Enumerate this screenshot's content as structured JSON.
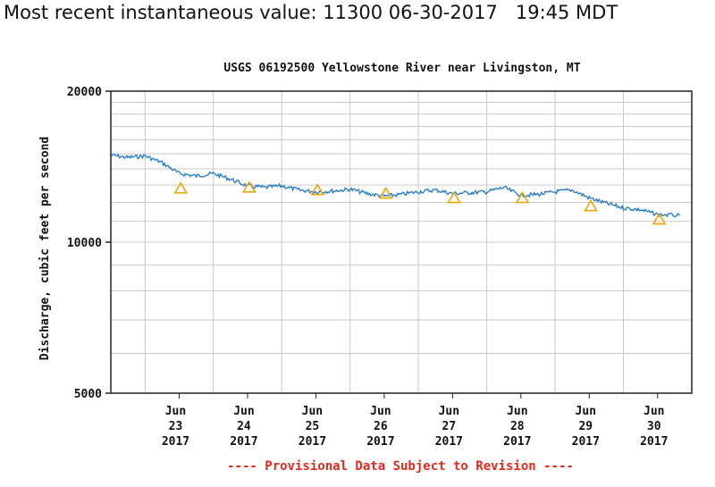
{
  "header": {
    "latest_value_text": "Most recent instantaneous value: 11300 06-30-2017   19:45 MDT"
  },
  "colors": {
    "series": "#1f77d0",
    "median_marker": "#f0a500",
    "footnote": "#e8281e",
    "grid": "#c8c8c8"
  },
  "chart_data": {
    "type": "line",
    "title": "USGS 06192500 Yellowstone River near Livingston, MT",
    "ylabel": "Discharge, cubic feet per second",
    "xlabel": "",
    "y_scale": "log",
    "ylim": [
      5000,
      20000
    ],
    "y_ticks": [
      5000,
      10000,
      20000
    ],
    "y_tick_labels": [
      "5000",
      "10000",
      "20000"
    ],
    "xlim": [
      "2017-06-22T12:00",
      "2017-07-01T00:00"
    ],
    "x_tick_labels": [
      {
        "month": "Jun",
        "day": "23",
        "year": "2017"
      },
      {
        "month": "Jun",
        "day": "24",
        "year": "2017"
      },
      {
        "month": "Jun",
        "day": "25",
        "year": "2017"
      },
      {
        "month": "Jun",
        "day": "26",
        "year": "2017"
      },
      {
        "month": "Jun",
        "day": "27",
        "year": "2017"
      },
      {
        "month": "Jun",
        "day": "28",
        "year": "2017"
      },
      {
        "month": "Jun",
        "day": "29",
        "year": "2017"
      },
      {
        "month": "Jun",
        "day": "30",
        "year": "2017"
      }
    ],
    "grid": true,
    "series": [
      {
        "values_x": [
          "2017-06-22T12:00",
          "2017-06-22T18:00",
          "2017-06-23T00:00",
          "2017-06-23T06:00",
          "2017-06-23T12:00",
          "2017-06-23T18:00",
          "2017-06-24T00:00",
          "2017-06-24T06:00",
          "2017-06-24T12:00",
          "2017-06-24T18:00",
          "2017-06-25T00:00",
          "2017-06-25T06:00",
          "2017-06-25T12:00",
          "2017-06-25T18:00",
          "2017-06-26T00:00",
          "2017-06-26T06:00",
          "2017-06-26T12:00",
          "2017-06-26T18:00",
          "2017-06-27T00:00",
          "2017-06-27T06:00",
          "2017-06-27T12:00",
          "2017-06-27T18:00",
          "2017-06-28T00:00",
          "2017-06-28T06:00",
          "2017-06-28T12:00",
          "2017-06-28T18:00",
          "2017-06-29T00:00",
          "2017-06-29T06:00",
          "2017-06-29T12:00",
          "2017-06-29T18:00",
          "2017-06-30T00:00",
          "2017-06-30T06:00",
          "2017-06-30T12:00",
          "2017-06-30T19:45"
        ],
        "values_y": [
          14900,
          14750,
          14850,
          14400,
          13700,
          13550,
          13700,
          13350,
          12950,
          12850,
          12950,
          12700,
          12600,
          12650,
          12750,
          12500,
          12350,
          12450,
          12600,
          12700,
          12500,
          12550,
          12600,
          12850,
          12400,
          12450,
          12600,
          12700,
          12250,
          11950,
          11700,
          11600,
          11350,
          11300
        ]
      },
      {
        "marker": "triangle",
        "values_x": [
          "2017-06-23T00:00",
          "2017-06-24T00:00",
          "2017-06-25T00:00",
          "2017-06-26T00:00",
          "2017-06-27T00:00",
          "2017-06-28T00:00",
          "2017-06-29T00:00",
          "2017-06-30T00:00"
        ],
        "values_y": [
          12800,
          12850,
          12700,
          12500,
          12250,
          12250,
          11800,
          11100
        ]
      }
    ],
    "footnote": "---- Provisional Data Subject to Revision ----"
  }
}
